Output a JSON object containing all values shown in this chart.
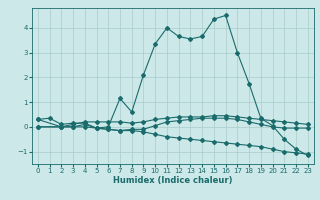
{
  "xlabel": "Humidex (Indice chaleur)",
  "bg_color": "#cce8e8",
  "grid_color": "#aacccc",
  "line_color": "#1a6b6b",
  "xlim": [
    -0.5,
    23.5
  ],
  "ylim": [
    -1.5,
    4.8
  ],
  "xticks": [
    0,
    1,
    2,
    3,
    4,
    5,
    6,
    7,
    8,
    9,
    10,
    11,
    12,
    13,
    14,
    15,
    16,
    17,
    18,
    19,
    20,
    21,
    22,
    23
  ],
  "yticks": [
    -1,
    0,
    1,
    2,
    3,
    4
  ],
  "series1_x": [
    0,
    1,
    2,
    3,
    4,
    5,
    6,
    7,
    8,
    9,
    10,
    11,
    12,
    13,
    14,
    15,
    16,
    17,
    18,
    19,
    20,
    21,
    22,
    23
  ],
  "series1_y": [
    0.3,
    0.35,
    0.1,
    0.15,
    0.15,
    -0.05,
    0.0,
    1.15,
    0.6,
    2.1,
    3.35,
    4.0,
    3.65,
    3.55,
    3.65,
    4.35,
    4.5,
    3.0,
    1.75,
    0.35,
    0.05,
    -0.5,
    -0.9,
    -1.15
  ],
  "series2_x": [
    0,
    2,
    3,
    4,
    5,
    6,
    7,
    8,
    9,
    10,
    11,
    12,
    13,
    14,
    15,
    16,
    17,
    18,
    19,
    20,
    21,
    22,
    23
  ],
  "series2_y": [
    0.0,
    0.0,
    0.0,
    0.1,
    -0.05,
    -0.1,
    -0.15,
    -0.1,
    -0.1,
    0.05,
    0.2,
    0.25,
    0.3,
    0.35,
    0.35,
    0.35,
    0.3,
    0.2,
    0.1,
    0.0,
    -0.05,
    -0.05,
    -0.05
  ],
  "series3_x": [
    0,
    2,
    3,
    4,
    5,
    6,
    7,
    8,
    9,
    10,
    11,
    12,
    13,
    14,
    15,
    16,
    17,
    18,
    19,
    20,
    21,
    22,
    23
  ],
  "series3_y": [
    0.0,
    0.0,
    0.0,
    0.0,
    -0.05,
    -0.1,
    -0.15,
    -0.15,
    -0.2,
    -0.3,
    -0.4,
    -0.45,
    -0.5,
    -0.55,
    -0.6,
    -0.65,
    -0.7,
    -0.75,
    -0.8,
    -0.9,
    -1.0,
    -1.05,
    -1.1
  ],
  "series4_x": [
    0,
    2,
    3,
    4,
    5,
    6,
    7,
    8,
    9,
    10,
    11,
    12,
    13,
    14,
    15,
    16,
    17,
    18,
    19,
    20,
    21,
    22,
    23
  ],
  "series4_y": [
    0.3,
    0.0,
    0.1,
    0.2,
    0.2,
    0.2,
    0.2,
    0.15,
    0.2,
    0.3,
    0.35,
    0.4,
    0.4,
    0.4,
    0.45,
    0.45,
    0.4,
    0.35,
    0.3,
    0.25,
    0.2,
    0.15,
    0.1
  ]
}
